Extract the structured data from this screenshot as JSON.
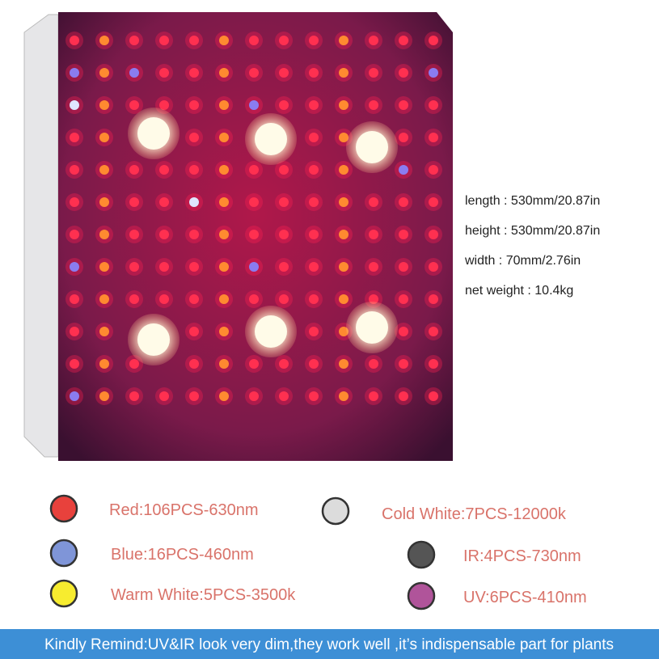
{
  "specs": [
    "length : 530mm/20.87in",
    "height : 530mm/20.87in",
    "width : 70mm/2.76in",
    "net weight : 10.4kg"
  ],
  "legend": [
    {
      "label": "Red:106PCS-630nm",
      "color": "#e8413c"
    },
    {
      "label": "Blue:16PCS-460nm",
      "color": "#7f95d8"
    },
    {
      "label": "Warm White:5PCS-3500k",
      "color": "#f7ec2f"
    },
    {
      "label": "Cold White:7PCS-12000k",
      "color": "#dcdcdc"
    },
    {
      "label": "IR:4PCS-730nm",
      "color": "#555555"
    },
    {
      "label": "UV:6PCS-410nm",
      "color": "#b0549a"
    }
  ],
  "banner": "Kindly Remind:UV&IR look very dim,they work well ,it’s indispensable part for plants"
}
